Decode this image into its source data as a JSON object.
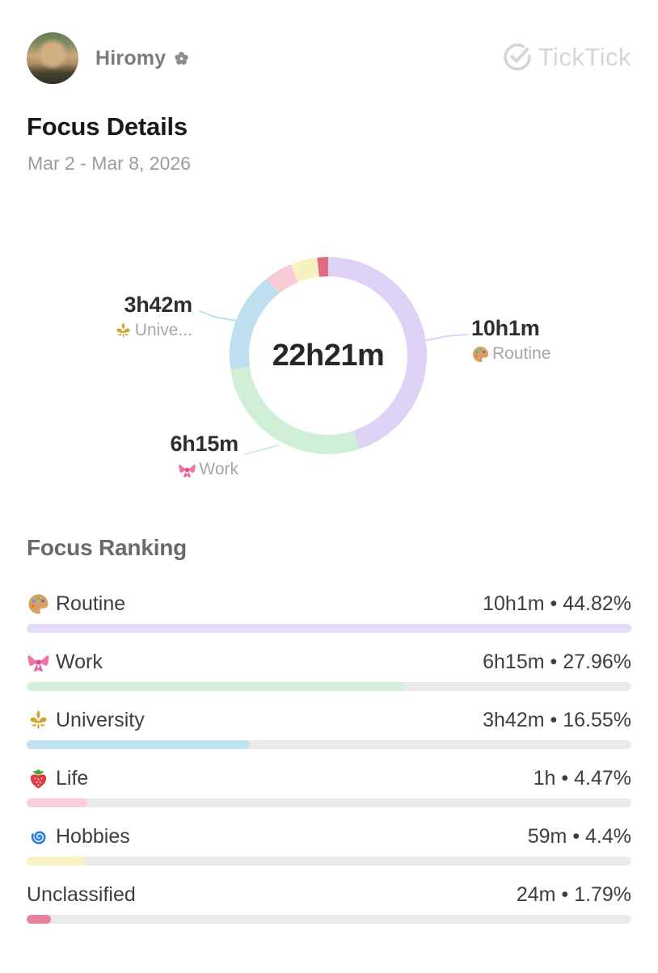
{
  "header": {
    "user_name": "Hiromy",
    "user_badge_icon": "flower",
    "logo_text": "TickTick",
    "logo_color": "#d5d5d5"
  },
  "page": {
    "title": "Focus Details",
    "date_range": "Mar 2 - Mar 8, 2026"
  },
  "chart_data": {
    "type": "pie",
    "subtype": "donut",
    "title": "Focus Details",
    "center_label": "22h21m",
    "legend_position": "callouts",
    "segments": [
      {
        "name": "Routine",
        "icon": "palette",
        "duration": "10h1m",
        "percent": 44.82,
        "color": "#ded2f6"
      },
      {
        "name": "Work",
        "icon": "bow",
        "duration": "6h15m",
        "percent": 27.96,
        "color": "#cff0d7"
      },
      {
        "name": "University",
        "icon": "fleur-de-lis",
        "duration": "3h42m",
        "percent": 16.55,
        "color": "#bedff0"
      },
      {
        "name": "Life",
        "icon": "strawberry",
        "duration": "1h",
        "percent": 4.47,
        "color": "#f8ccd7"
      },
      {
        "name": "Hobbies",
        "icon": "cyclone",
        "duration": "59m",
        "percent": 4.4,
        "color": "#f8f2c3"
      },
      {
        "name": "Unclassified",
        "icon": "",
        "duration": "24m",
        "percent": 1.79,
        "color": "#df6a82"
      }
    ],
    "callouts": [
      {
        "value": "3h42m",
        "label": "Unive...",
        "icon": "fleur-de-lis",
        "segment": "University",
        "position": "left"
      },
      {
        "value": "10h1m",
        "label": "Routine",
        "icon": "palette",
        "segment": "Routine",
        "position": "right"
      },
      {
        "value": "6h15m",
        "label": "Work",
        "icon": "bow",
        "segment": "Work",
        "position": "bottom-left"
      }
    ]
  },
  "ranking": {
    "title": "Focus Ranking",
    "separator": "•",
    "track_color": "#eaeaea",
    "rows": [
      {
        "label": "Routine",
        "icon": "palette",
        "duration": "10h1m",
        "percent": 44.82,
        "percent_text": "44.82%",
        "bar_color": "#e5dcf9"
      },
      {
        "label": "Work",
        "icon": "bow",
        "duration": "6h15m",
        "percent": 27.96,
        "percent_text": "27.96%",
        "bar_color": "#d2f1da"
      },
      {
        "label": "University",
        "icon": "fleur-de-lis",
        "duration": "3h42m",
        "percent": 16.55,
        "percent_text": "16.55%",
        "bar_color": "#c2e2f4"
      },
      {
        "label": "Life",
        "icon": "strawberry",
        "duration": "1h",
        "percent": 4.47,
        "percent_text": "4.47%",
        "bar_color": "#f9cdd9"
      },
      {
        "label": "Hobbies",
        "icon": "cyclone",
        "duration": "59m",
        "percent": 4.4,
        "percent_text": "4.4%",
        "bar_color": "#f8f3c5"
      },
      {
        "label": "Unclassified",
        "icon": "",
        "duration": "24m",
        "percent": 1.79,
        "percent_text": "1.79%",
        "bar_color": "#e8829c"
      }
    ]
  }
}
